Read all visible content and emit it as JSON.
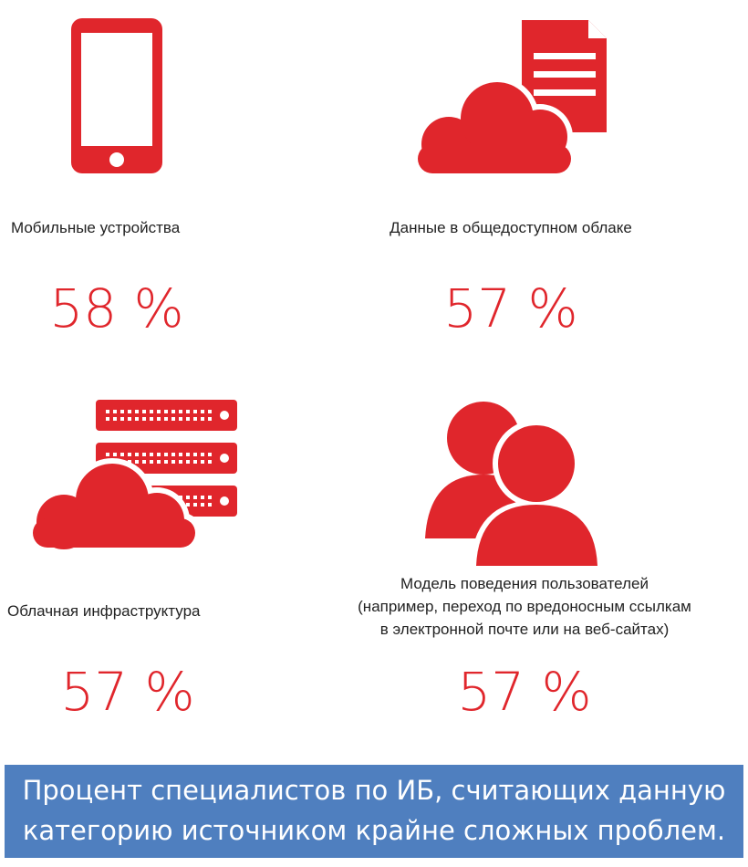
{
  "items": [
    {
      "label": [
        "Мобильные устройства"
      ],
      "value": "58 %"
    },
    {
      "label": [
        "Данные в общедоступном облаке"
      ],
      "value": "57 %"
    },
    {
      "label": [
        "Облачная инфраструктура"
      ],
      "value": "57 %"
    },
    {
      "label": [
        "Модель поведения пользователей",
        "(например, переход по вредоносным ссылкам",
        "в электронной почте или на веб-сайтах)"
      ],
      "value": "57 %"
    }
  ],
  "footer": {
    "lines": [
      "Процент специалистов по ИБ, считающих данную",
      "категорию источником крайне сложных проблем."
    ]
  }
}
